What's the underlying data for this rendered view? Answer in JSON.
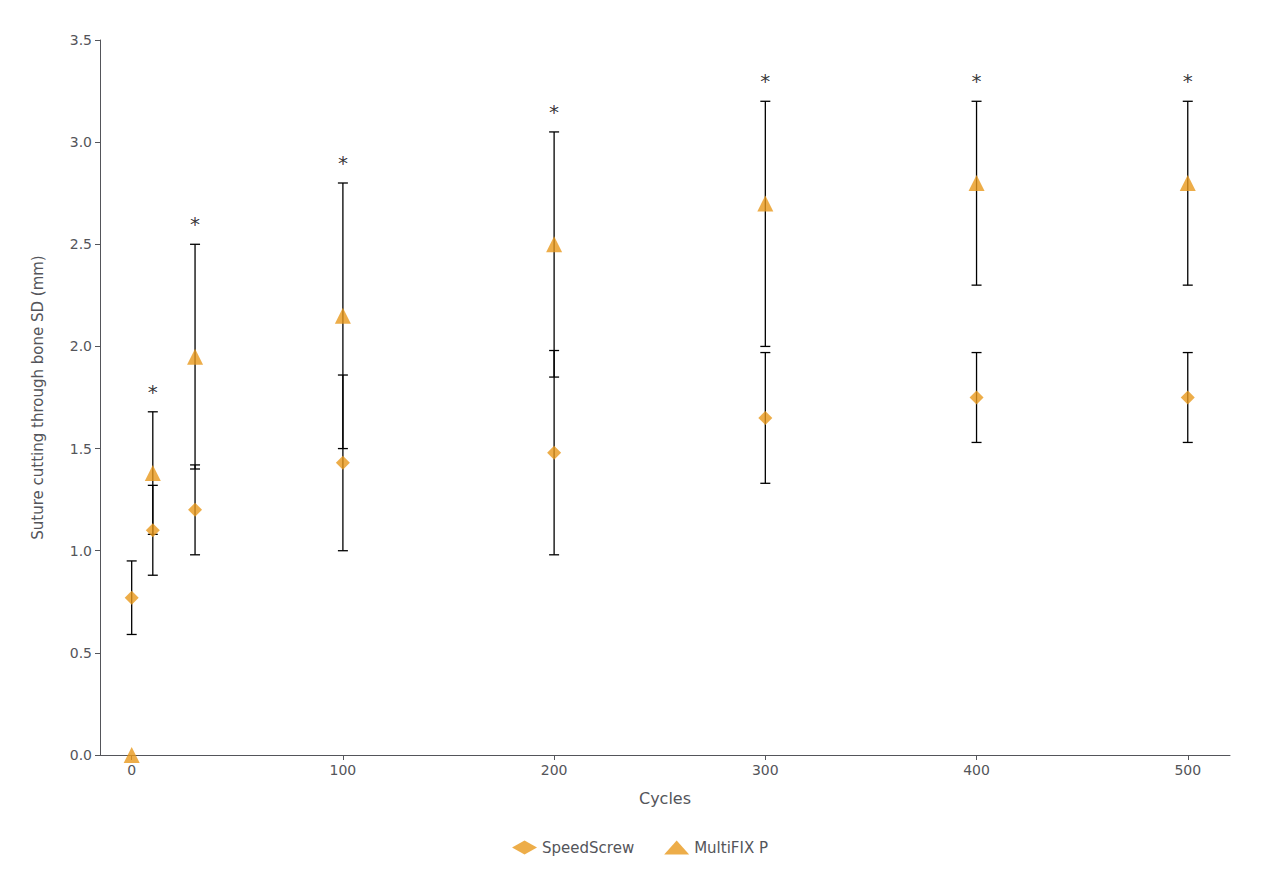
{
  "chart_data": {
    "type": "scatter",
    "xlabel": "Cycles",
    "ylabel": "Suture cutting through bone SD (mm)",
    "xlim": [
      -15,
      520
    ],
    "xticks": [
      0,
      100,
      200,
      300,
      400,
      500
    ],
    "ylim": [
      0.0,
      3.5
    ],
    "yticks": [
      {
        "value": 0.0,
        "label": "0.0"
      },
      0.5,
      {
        "value": 1.0,
        "label": "1.0"
      },
      1.5,
      {
        "value": 2.0,
        "label": "2.0"
      },
      2.5,
      {
        "value": 3.0,
        "label": "3.0"
      },
      3.5
    ],
    "grid": false,
    "legend": "bottom",
    "series": [
      {
        "name": "SpeedScrew",
        "color": "#E8981C",
        "marker": "diamond",
        "x": [
          0,
          10,
          30,
          100,
          200,
          300,
          400,
          500
        ],
        "values": [
          0.77,
          1.1,
          1.2,
          1.43,
          1.48,
          1.65,
          1.75,
          1.75
        ],
        "error_lo": [
          0.18,
          0.22,
          0.22,
          0.43,
          0.5,
          0.32,
          0.22,
          0.22
        ],
        "error_hi": [
          0.18,
          0.22,
          0.22,
          0.43,
          0.5,
          0.32,
          0.22,
          0.22
        ]
      },
      {
        "name": "MultiFIX P",
        "color": "#E8981C",
        "marker": "triangle",
        "x": [
          0,
          10,
          30,
          100,
          200,
          300,
          400,
          500
        ],
        "values": [
          0.0,
          1.38,
          1.95,
          2.15,
          2.5,
          2.7,
          2.8,
          2.8
        ],
        "error_lo": [
          0.0,
          0.3,
          0.55,
          0.65,
          0.65,
          0.7,
          0.5,
          0.5
        ],
        "error_hi": [
          0.0,
          0.3,
          0.55,
          0.65,
          0.55,
          0.5,
          0.4,
          0.4
        ]
      }
    ],
    "annotations": [
      {
        "text": "*",
        "x": 10,
        "y": 1.73
      },
      {
        "text": "*",
        "x": 30,
        "y": 2.55
      },
      {
        "text": "*",
        "x": 100,
        "y": 2.85
      },
      {
        "text": "*",
        "x": 200,
        "y": 3.1
      },
      {
        "text": "*",
        "x": 300,
        "y": 3.25
      },
      {
        "text": "*",
        "x": 400,
        "y": 3.25
      },
      {
        "text": "*",
        "x": 500,
        "y": 3.25
      }
    ]
  }
}
